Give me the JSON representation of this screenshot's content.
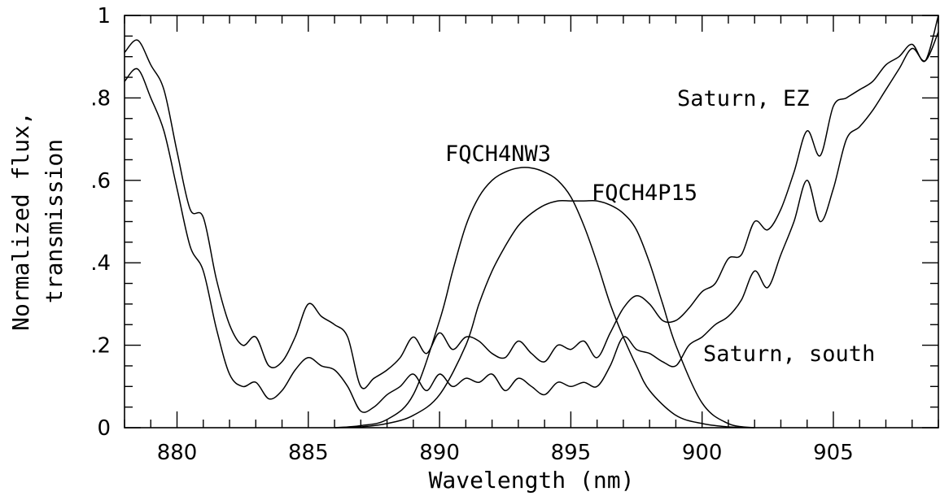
{
  "chart_data": {
    "type": "line",
    "xlabel": "Wavelength (nm)",
    "ylabel_lines": [
      "Normalized flux,",
      "transmission"
    ],
    "xlim": [
      878,
      909
    ],
    "ylim": [
      0,
      1
    ],
    "x_major_ticks": [
      880,
      885,
      890,
      895,
      900,
      905
    ],
    "x_tick_labels": [
      "880",
      "885",
      "890",
      "895",
      "900",
      "905"
    ],
    "y_major_ticks": [
      0,
      0.2,
      0.4,
      0.6,
      0.8,
      1.0
    ],
    "y_tick_labels": [
      "0",
      ".2",
      ".4",
      ".6",
      ".8",
      "1"
    ],
    "grid": false,
    "annotations": [
      "Saturn, EZ",
      "FQCH4NW3",
      "FQCH4P15",
      "Saturn, south"
    ],
    "series": [
      {
        "name": "Saturn, EZ",
        "x": [
          878,
          878.5,
          879,
          879.5,
          880,
          880.5,
          881,
          881.5,
          882,
          882.5,
          883,
          883.5,
          884,
          884.5,
          885,
          885.5,
          886,
          886.5,
          887,
          887.5,
          888,
          888.5,
          889,
          889.5,
          890,
          890.5,
          891,
          891.5,
          892,
          892.5,
          893,
          893.5,
          894,
          894.5,
          895,
          895.5,
          896,
          896.5,
          897,
          897.5,
          898,
          898.5,
          899,
          899.5,
          900,
          900.5,
          901,
          901.5,
          902,
          902.5,
          903,
          903.5,
          904,
          904.5,
          905,
          905.5,
          906,
          906.5,
          907,
          907.5,
          908,
          908.5,
          909
        ],
        "values": [
          0.91,
          0.94,
          0.88,
          0.82,
          0.67,
          0.53,
          0.51,
          0.36,
          0.25,
          0.2,
          0.22,
          0.15,
          0.16,
          0.22,
          0.3,
          0.27,
          0.25,
          0.22,
          0.1,
          0.12,
          0.14,
          0.17,
          0.22,
          0.18,
          0.23,
          0.19,
          0.22,
          0.21,
          0.18,
          0.17,
          0.21,
          0.18,
          0.16,
          0.2,
          0.19,
          0.21,
          0.17,
          0.23,
          0.29,
          0.32,
          0.3,
          0.26,
          0.26,
          0.29,
          0.33,
          0.35,
          0.41,
          0.42,
          0.5,
          0.48,
          0.53,
          0.62,
          0.72,
          0.66,
          0.78,
          0.8,
          0.82,
          0.84,
          0.88,
          0.9,
          0.93,
          0.89,
          1.0
        ]
      },
      {
        "name": "Saturn, south",
        "x": [
          878,
          878.5,
          879,
          879.5,
          880,
          880.5,
          881,
          881.5,
          882,
          882.5,
          883,
          883.5,
          884,
          884.5,
          885,
          885.5,
          886,
          886.5,
          887,
          887.5,
          888,
          888.5,
          889,
          889.5,
          890,
          890.5,
          891,
          891.5,
          892,
          892.5,
          893,
          893.5,
          894,
          894.5,
          895,
          895.5,
          896,
          896.5,
          897,
          897.5,
          898,
          898.5,
          899,
          899.5,
          900,
          900.5,
          901,
          901.5,
          902,
          902.5,
          903,
          903.5,
          904,
          904.5,
          905,
          905.5,
          906,
          906.5,
          907,
          907.5,
          908,
          908.5,
          909
        ],
        "values": [
          0.84,
          0.87,
          0.8,
          0.72,
          0.58,
          0.44,
          0.38,
          0.24,
          0.13,
          0.1,
          0.11,
          0.07,
          0.09,
          0.14,
          0.17,
          0.15,
          0.14,
          0.1,
          0.04,
          0.05,
          0.08,
          0.1,
          0.13,
          0.09,
          0.13,
          0.1,
          0.12,
          0.11,
          0.13,
          0.09,
          0.12,
          0.1,
          0.08,
          0.11,
          0.1,
          0.11,
          0.1,
          0.15,
          0.22,
          0.19,
          0.18,
          0.16,
          0.15,
          0.2,
          0.22,
          0.25,
          0.27,
          0.31,
          0.38,
          0.34,
          0.42,
          0.5,
          0.6,
          0.5,
          0.58,
          0.7,
          0.73,
          0.77,
          0.82,
          0.87,
          0.92,
          0.89,
          0.96
        ]
      },
      {
        "name": "FQCH4NW3",
        "x": [
          886,
          887,
          888,
          889,
          890,
          890.5,
          891,
          891.5,
          892,
          892.5,
          893,
          893.5,
          894,
          894.5,
          895,
          895.5,
          896,
          896.5,
          897,
          897.5,
          898,
          899,
          900,
          901,
          902
        ],
        "values": [
          0.0,
          0.005,
          0.02,
          0.08,
          0.26,
          0.38,
          0.49,
          0.56,
          0.6,
          0.62,
          0.63,
          0.63,
          0.62,
          0.6,
          0.56,
          0.49,
          0.4,
          0.3,
          0.22,
          0.15,
          0.09,
          0.03,
          0.01,
          0.002,
          0.0
        ]
      },
      {
        "name": "FQCH4P15",
        "x": [
          886,
          887,
          888,
          889,
          890,
          891,
          891.5,
          892,
          892.5,
          893,
          893.5,
          894,
          894.5,
          895,
          895.5,
          896,
          896.5,
          897,
          897.5,
          898,
          898.5,
          899,
          900,
          901,
          902
        ],
        "values": [
          0.0,
          0.002,
          0.01,
          0.03,
          0.08,
          0.2,
          0.3,
          0.38,
          0.44,
          0.49,
          0.52,
          0.54,
          0.55,
          0.55,
          0.55,
          0.55,
          0.54,
          0.52,
          0.48,
          0.4,
          0.3,
          0.2,
          0.06,
          0.01,
          0.0
        ]
      }
    ]
  }
}
